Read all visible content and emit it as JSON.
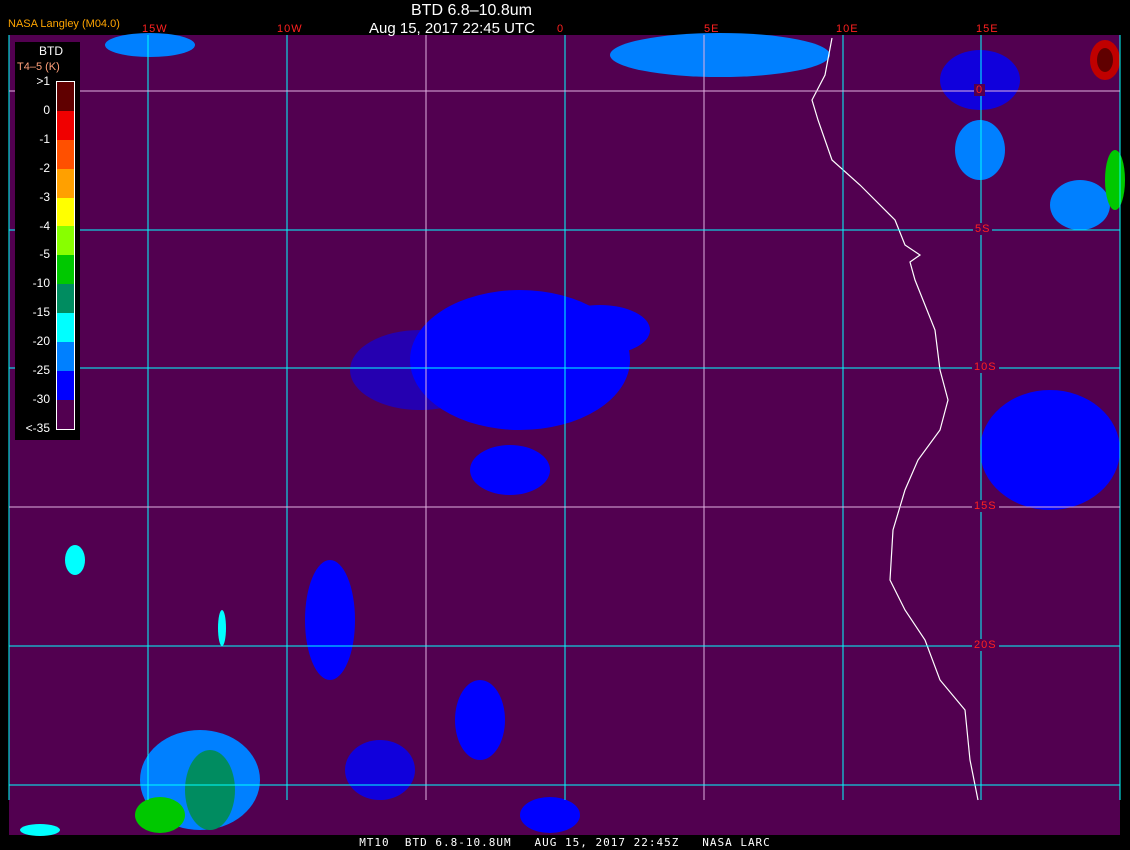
{
  "header": {
    "title": "BTD 6.8–10.8um",
    "datetime": "Aug 15, 2017 22:45 UTC",
    "organization": "NASA Langley (M04.0)"
  },
  "longitude_labels": [
    "15W",
    "10W",
    "0",
    "5E",
    "10E",
    "15E"
  ],
  "latitude_labels": [
    "0",
    "5S",
    "10S",
    "15S",
    "20S"
  ],
  "legend": {
    "title": "BTD",
    "unit": "T4–5 (K)",
    "ticks": [
      ">1",
      "0",
      "-1",
      "-2",
      "-3",
      "-4",
      "-5",
      "-10",
      "-15",
      "-20",
      "-25",
      "-30",
      "<-35"
    ],
    "colors": [
      "#600000",
      "#f00000",
      "#ff5000",
      "#ffa000",
      "#ffff00",
      "#88ff00",
      "#00c800",
      "#008c60",
      "#00ffff",
      "#0080ff",
      "#0000ff",
      "#520050"
    ]
  },
  "colors": {
    "background": "#520050",
    "grid": "#00ffff",
    "grid_alt": "#e0b0e0",
    "coastline": "#ffffff",
    "label": "#ff2020"
  },
  "footer": {
    "text": "MT10  BTD 6.8-10.8UM   AUG 15, 2017 22:45Z   NASA LARC"
  }
}
